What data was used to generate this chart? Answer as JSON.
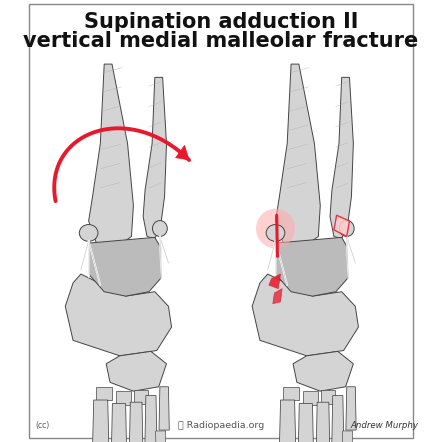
{
  "title_line1": "Supination adduction II",
  "title_line2": "vertical medial malleolar fracture",
  "title_fontsize": 15,
  "title_fontweight": "bold",
  "title_color": "#111111",
  "bg_color": "#ffffff",
  "border_color": "#888888",
  "watermark_radiopaedia": "Radiopaedia.org",
  "watermark_author": "Andrew Murphy",
  "arrow_color": "#e8192c",
  "fracture_highlight_color": "#e8192c",
  "bone_color_light": "#d4d4d4",
  "bone_color_mid": "#bbbbbb",
  "bone_color_dark": "#999999",
  "bone_outline": "#444444",
  "fig_width": 4.42,
  "fig_height": 4.42,
  "dpi": 100
}
